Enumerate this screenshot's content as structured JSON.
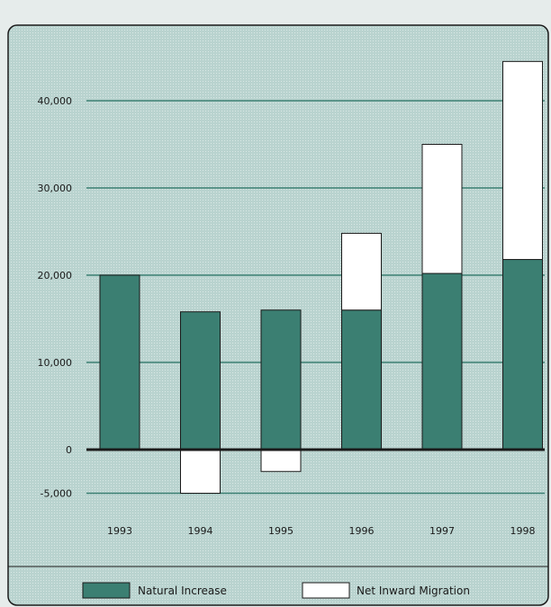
{
  "chart_data": {
    "type": "bar",
    "stacked": true,
    "categories": [
      "1993",
      "1994",
      "1995",
      "1996",
      "1997",
      "1998"
    ],
    "series": [
      {
        "name": "Natural Increase",
        "values": [
          20000,
          15800,
          16000,
          16000,
          20200,
          21800
        ]
      },
      {
        "name": "Net Inward Migration",
        "values": [
          0,
          -5000,
          -2500,
          8800,
          14800,
          22700
        ]
      }
    ],
    "y_ticks": [
      -5000,
      0,
      10000,
      20000,
      30000,
      40000
    ],
    "y_tick_labels": [
      "-5,000",
      "0",
      "10,000",
      "20,000",
      "30,000",
      "40,000"
    ],
    "ylim": [
      -6000,
      45000
    ],
    "grid": true,
    "legend_position": "bottom",
    "colors": {
      "natural_increase": "#3b7f72",
      "net_migration": "#ffffff",
      "panel_background": "#b9d3cf",
      "gridline": "#3b7f72",
      "border": "#1a1a1a"
    }
  }
}
